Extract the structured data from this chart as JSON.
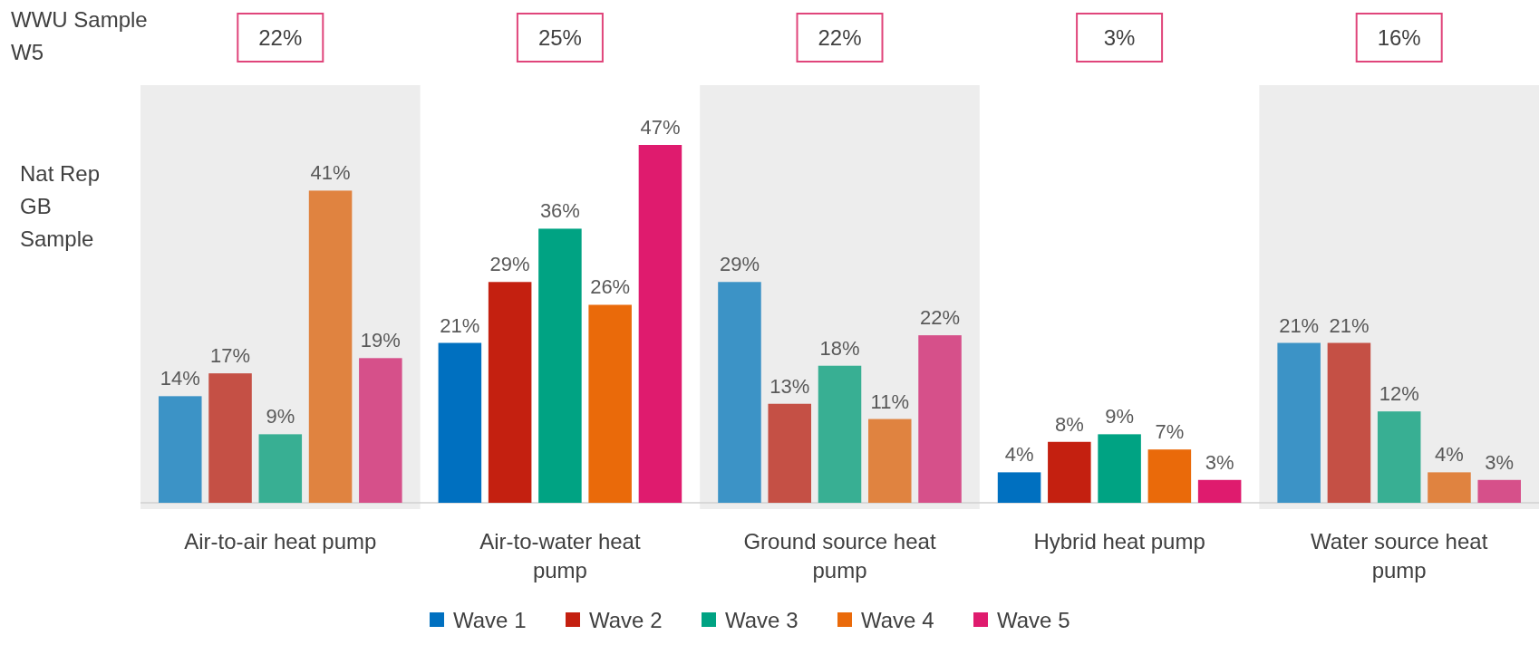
{
  "chart_data": {
    "type": "bar",
    "categories": [
      "Air-to-air heat pump",
      "Air-to-water heat pump",
      "Ground source heat pump",
      "Hybrid heat pump",
      "Water source heat pump"
    ],
    "series": [
      {
        "name": "Wave 1",
        "color": "#0070c0",
        "colors": [
          "#3c93c6",
          "#0070c0",
          "#3c93c6",
          "#0070c0",
          "#3c93c6"
        ],
        "values": [
          14,
          21,
          29,
          4,
          21
        ],
        "value_labels": [
          "14%",
          "21%",
          "29%",
          "4%",
          "21%"
        ]
      },
      {
        "name": "Wave 2",
        "color": "#c42010",
        "colors": [
          "#c55045",
          "#c42010",
          "#c55045",
          "#c42010",
          "#c55045"
        ],
        "values": [
          17,
          29,
          13,
          8,
          21
        ],
        "value_labels": [
          "17%",
          "29%",
          "13%",
          "8%",
          "21%"
        ]
      },
      {
        "name": "Wave 3",
        "color": "#00a383",
        "colors": [
          "#38af93",
          "#00a383",
          "#38af93",
          "#00a383",
          "#38af93"
        ],
        "values": [
          9,
          36,
          18,
          9,
          12
        ],
        "value_labels": [
          "9%",
          "36%",
          "18%",
          "9%",
          "12%"
        ]
      },
      {
        "name": "Wave 4",
        "color": "#ea6a0a",
        "colors": [
          "#e08340",
          "#ea6a0a",
          "#e08340",
          "#ea6a0a",
          "#e08340"
        ],
        "values": [
          41,
          26,
          11,
          7,
          4
        ],
        "value_labels": [
          "41%",
          "26%",
          "11%",
          "7%",
          "4%"
        ]
      },
      {
        "name": "Wave 5",
        "color": "#df1b6e",
        "colors": [
          "#d6508a",
          "#df1b6e",
          "#d6508a",
          "#df1b6e",
          "#d6508a"
        ],
        "values": [
          19,
          47,
          22,
          3,
          3
        ],
        "value_labels": [
          "19%",
          "47%",
          "22%",
          "3%",
          "3%"
        ]
      }
    ],
    "bands": [
      {
        "axis": "x",
        "from": "Air-to-air heat pump",
        "to": "Air-to-air heat pump",
        "color": "#ededed"
      },
      {
        "axis": "x",
        "from": "Ground source heat pump",
        "to": "Ground source heat pump",
        "color": "#ededed"
      },
      {
        "axis": "x",
        "from": "Water source heat pump",
        "to": "Water source heat pump",
        "color": "#ededed"
      }
    ],
    "annotations": [
      "WWU Sample W5",
      "Nat Rep GB Sample",
      "22%",
      "25%",
      "22%",
      "3%",
      "16%"
    ],
    "legend": "bottom"
  }
}
